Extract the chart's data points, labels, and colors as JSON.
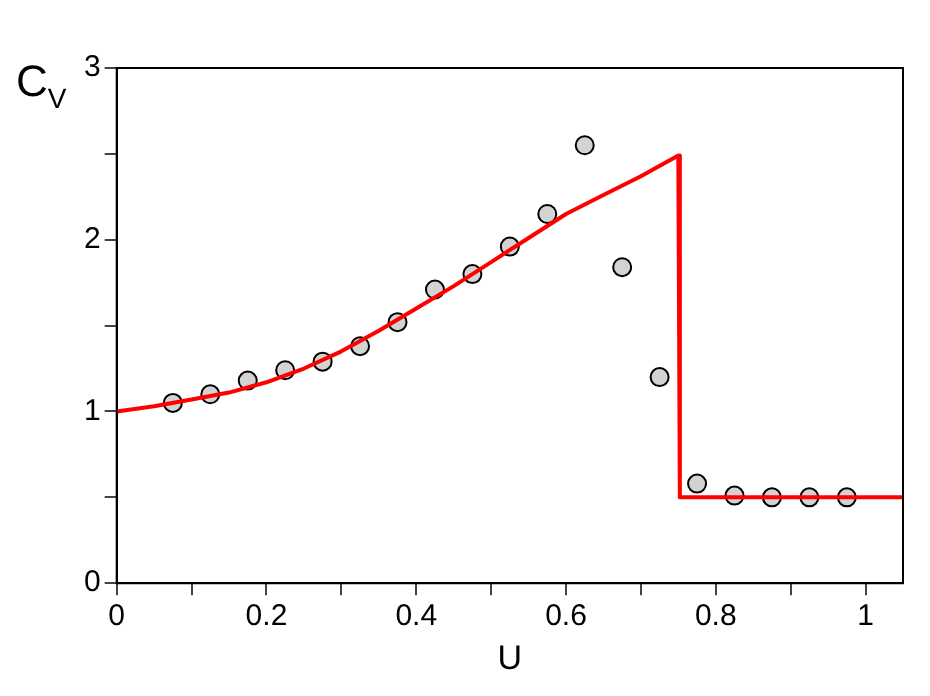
{
  "chart_data": {
    "type": "line",
    "xlabel": "U",
    "ylabel": "C$_{V}$",
    "xlim": [
      0,
      1.05
    ],
    "ylim": [
      0,
      3
    ],
    "xticks": [
      0,
      {
        "value": 0.1,
        "label": null
      },
      0.2,
      {
        "value": 0.3,
        "label": null
      },
      0.4,
      {
        "value": 0.5,
        "label": null
      },
      0.6,
      {
        "value": 0.7,
        "label": null
      },
      0.8,
      {
        "value": 0.9,
        "label": null
      },
      1
    ],
    "yticks": [
      0,
      {
        "value": 0.5,
        "label": null
      },
      1,
      {
        "value": 1.5,
        "label": null
      },
      2,
      {
        "value": 2.5,
        "label": null
      },
      3
    ],
    "grid": false,
    "legend": false,
    "series": [
      {
        "color": "#ff0000",
        "marker": "none",
        "line_style": "solid",
        "x": [
          0,
          0.05,
          0.1,
          0.15,
          0.2,
          0.25,
          0.3,
          0.35,
          0.4,
          0.45,
          0.5,
          0.55,
          0.6,
          0.65,
          0.7,
          0.75,
          0.752,
          0.8,
          0.9,
          1.05
        ],
        "values": [
          1.0,
          1.03,
          1.07,
          1.11,
          1.17,
          1.25,
          1.35,
          1.47,
          1.6,
          1.73,
          1.87,
          2.01,
          2.15,
          2.26,
          2.37,
          2.49,
          0.5,
          0.5,
          0.5,
          0.5
        ]
      },
      {
        "type": "scatter",
        "color": "#d3d3d3",
        "marker": "circle",
        "x": [
          0.075,
          0.125,
          0.175,
          0.225,
          0.275,
          0.325,
          0.375,
          0.425,
          0.475,
          0.525,
          0.575,
          0.625,
          0.675,
          0.725,
          0.775,
          0.825,
          0.875,
          0.925,
          0.975
        ],
        "values": [
          1.05,
          1.1,
          1.18,
          1.24,
          1.29,
          1.38,
          1.52,
          1.71,
          1.8,
          1.96,
          2.15,
          2.55,
          1.84,
          1.2,
          0.58,
          0.51,
          0.5,
          0.5,
          0.5
        ]
      }
    ]
  }
}
